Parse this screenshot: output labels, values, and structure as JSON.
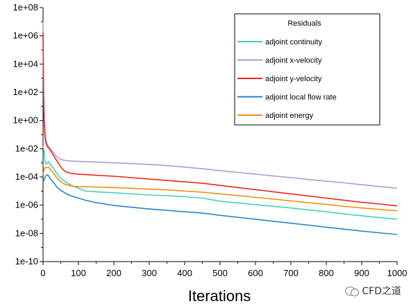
{
  "chart_data": {
    "type": "line",
    "title": "",
    "xlabel": "Iterations",
    "ylabel": "",
    "xlim": [
      0,
      1000
    ],
    "ylim": [
      -10,
      8
    ],
    "yscale": "log",
    "x_ticks": [
      0,
      100,
      200,
      300,
      400,
      500,
      600,
      700,
      800,
      900,
      1000
    ],
    "y_ticks": [
      {
        "exp": 8,
        "label": "1e+08"
      },
      {
        "exp": 6,
        "label": "1e+06"
      },
      {
        "exp": 4,
        "label": "1e+04"
      },
      {
        "exp": 2,
        "label": "1e+02"
      },
      {
        "exp": 0,
        "label": "1e+00"
      },
      {
        "exp": -2,
        "label": "1e-02"
      },
      {
        "exp": -4,
        "label": "1e-04"
      },
      {
        "exp": -6,
        "label": "1e-06"
      },
      {
        "exp": -8,
        "label": "1e-08"
      },
      {
        "exp": -10,
        "label": "1e-10"
      }
    ],
    "y_minor_ticks": [
      7,
      5,
      3,
      1,
      -1,
      -3,
      -5,
      -7,
      -9
    ],
    "grid": false,
    "legend": {
      "title": "Residuals",
      "position": "top-right"
    },
    "series": [
      {
        "name": "adjoint continuity",
        "color": "#3fd2b8",
        "points": [
          [
            0,
            -1.8
          ],
          [
            3,
            -2.2
          ],
          [
            6,
            -3.0
          ],
          [
            10,
            -3.1
          ],
          [
            15,
            -2.9
          ],
          [
            20,
            -3.1
          ],
          [
            30,
            -3.4
          ],
          [
            40,
            -3.8
          ],
          [
            50,
            -4.1
          ],
          [
            60,
            -4.3
          ],
          [
            80,
            -4.6
          ],
          [
            100,
            -4.8
          ],
          [
            120,
            -5.0
          ],
          [
            150,
            -5.05
          ],
          [
            200,
            -5.12
          ],
          [
            250,
            -5.2
          ],
          [
            300,
            -5.28
          ],
          [
            350,
            -5.33
          ],
          [
            400,
            -5.4
          ],
          [
            450,
            -5.5
          ],
          [
            500,
            -5.72
          ],
          [
            550,
            -5.84
          ],
          [
            600,
            -5.96
          ],
          [
            650,
            -6.08
          ],
          [
            700,
            -6.2
          ],
          [
            750,
            -6.34
          ],
          [
            800,
            -6.47
          ],
          [
            850,
            -6.62
          ],
          [
            900,
            -6.75
          ],
          [
            950,
            -6.88
          ],
          [
            1000,
            -7.0
          ]
        ]
      },
      {
        "name": "adjoint x-velocity",
        "color": "#a99ad8",
        "points": [
          [
            0,
            7.0
          ],
          [
            1,
            4.0
          ],
          [
            2,
            1.5
          ],
          [
            4,
            0.0
          ],
          [
            6,
            -1.0
          ],
          [
            10,
            -1.6
          ],
          [
            15,
            -1.85
          ],
          [
            20,
            -2.0
          ],
          [
            30,
            -2.3
          ],
          [
            40,
            -2.6
          ],
          [
            50,
            -2.75
          ],
          [
            60,
            -2.82
          ],
          [
            80,
            -2.88
          ],
          [
            100,
            -2.9
          ],
          [
            150,
            -2.95
          ],
          [
            200,
            -3.0
          ],
          [
            250,
            -3.05
          ],
          [
            300,
            -3.12
          ],
          [
            350,
            -3.2
          ],
          [
            400,
            -3.3
          ],
          [
            450,
            -3.42
          ],
          [
            500,
            -3.55
          ],
          [
            550,
            -3.68
          ],
          [
            600,
            -3.8
          ],
          [
            650,
            -3.93
          ],
          [
            700,
            -4.05
          ],
          [
            750,
            -4.18
          ],
          [
            800,
            -4.3
          ],
          [
            850,
            -4.42
          ],
          [
            900,
            -4.55
          ],
          [
            950,
            -4.68
          ],
          [
            1000,
            -4.8
          ]
        ]
      },
      {
        "name": "adjoint y-velocity",
        "color": "#e8271b",
        "points": [
          [
            0,
            6.2
          ],
          [
            1,
            3.0
          ],
          [
            2,
            1.0
          ],
          [
            3,
            0.0
          ],
          [
            5,
            -1.0
          ],
          [
            8,
            -1.6
          ],
          [
            12,
            -1.85
          ],
          [
            18,
            -2.0
          ],
          [
            25,
            -2.3
          ],
          [
            35,
            -2.7
          ],
          [
            45,
            -3.1
          ],
          [
            55,
            -3.45
          ],
          [
            65,
            -3.65
          ],
          [
            80,
            -3.75
          ],
          [
            100,
            -3.8
          ],
          [
            150,
            -3.88
          ],
          [
            200,
            -3.95
          ],
          [
            250,
            -4.05
          ],
          [
            300,
            -4.15
          ],
          [
            350,
            -4.25
          ],
          [
            400,
            -4.35
          ],
          [
            450,
            -4.45
          ],
          [
            500,
            -4.6
          ],
          [
            550,
            -4.75
          ],
          [
            600,
            -4.9
          ],
          [
            650,
            -5.05
          ],
          [
            700,
            -5.2
          ],
          [
            750,
            -5.35
          ],
          [
            800,
            -5.5
          ],
          [
            850,
            -5.65
          ],
          [
            900,
            -5.8
          ],
          [
            950,
            -5.92
          ],
          [
            1000,
            -6.05
          ]
        ]
      },
      {
        "name": "adjoint local flow rate",
        "color": "#2682d0",
        "points": [
          [
            0,
            -4.4
          ],
          [
            3,
            -4.2
          ],
          [
            6,
            -4.0
          ],
          [
            10,
            -3.85
          ],
          [
            15,
            -3.9
          ],
          [
            20,
            -4.1
          ],
          [
            30,
            -4.4
          ],
          [
            40,
            -4.75
          ],
          [
            50,
            -4.95
          ],
          [
            60,
            -5.1
          ],
          [
            70,
            -5.25
          ],
          [
            80,
            -5.35
          ],
          [
            100,
            -5.5
          ],
          [
            120,
            -5.65
          ],
          [
            150,
            -5.82
          ],
          [
            200,
            -6.02
          ],
          [
            250,
            -6.15
          ],
          [
            300,
            -6.27
          ],
          [
            350,
            -6.37
          ],
          [
            400,
            -6.47
          ],
          [
            450,
            -6.56
          ],
          [
            500,
            -6.72
          ],
          [
            550,
            -6.86
          ],
          [
            600,
            -7.0
          ],
          [
            650,
            -7.14
          ],
          [
            700,
            -7.28
          ],
          [
            750,
            -7.42
          ],
          [
            800,
            -7.56
          ],
          [
            850,
            -7.7
          ],
          [
            900,
            -7.84
          ],
          [
            950,
            -7.96
          ],
          [
            1000,
            -8.08
          ]
        ]
      },
      {
        "name": "adjoint energy",
        "color": "#f0900f",
        "points": [
          [
            0,
            -3.8
          ],
          [
            3,
            -3.5
          ],
          [
            6,
            -3.3
          ],
          [
            10,
            -3.35
          ],
          [
            15,
            -3.3
          ],
          [
            20,
            -3.45
          ],
          [
            30,
            -3.75
          ],
          [
            40,
            -4.1
          ],
          [
            50,
            -4.35
          ],
          [
            60,
            -4.5
          ],
          [
            80,
            -4.65
          ],
          [
            100,
            -4.68
          ],
          [
            150,
            -4.72
          ],
          [
            200,
            -4.75
          ],
          [
            250,
            -4.8
          ],
          [
            300,
            -4.87
          ],
          [
            350,
            -4.92
          ],
          [
            400,
            -5.0
          ],
          [
            450,
            -5.08
          ],
          [
            500,
            -5.2
          ],
          [
            550,
            -5.32
          ],
          [
            600,
            -5.45
          ],
          [
            650,
            -5.57
          ],
          [
            700,
            -5.7
          ],
          [
            750,
            -5.83
          ],
          [
            800,
            -5.95
          ],
          [
            850,
            -6.08
          ],
          [
            900,
            -6.2
          ],
          [
            950,
            -6.3
          ],
          [
            1000,
            -6.4
          ]
        ]
      }
    ]
  },
  "watermark": {
    "text": "CFD之道"
  }
}
